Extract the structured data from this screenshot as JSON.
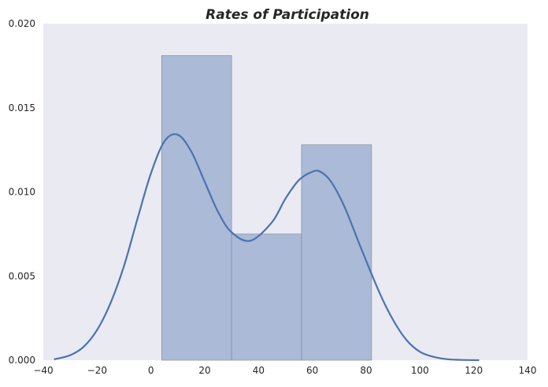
{
  "chart_data": {
    "type": "bar",
    "title": "Rates of Participation",
    "xlabel": "",
    "ylabel": "",
    "xlim": [
      -40,
      140
    ],
    "ylim": [
      0,
      0.02
    ],
    "grid": false,
    "background_color": "#EAEAF2",
    "bar_color": "#4C72B0",
    "line_color": "#4C72B0",
    "x_ticks": [
      -40,
      -20,
      0,
      20,
      40,
      60,
      80,
      100,
      120,
      140
    ],
    "x_tick_labels": [
      "−40",
      "−20",
      "0",
      "20",
      "40",
      "60",
      "80",
      "100",
      "120",
      "140"
    ],
    "y_ticks": [
      0,
      0.005,
      0.01,
      0.015,
      0.02
    ],
    "y_tick_labels": [
      "0.000",
      "0.005",
      "0.010",
      "0.015",
      "0.020"
    ],
    "histogram": {
      "bin_edges": [
        4,
        30,
        56,
        82
      ],
      "values": [
        0.0181,
        0.0075,
        0.0128
      ]
    },
    "kde": {
      "x": [
        -36,
        -30,
        -25,
        -20,
        -15,
        -10,
        -5,
        0,
        5,
        10,
        15,
        20,
        25,
        30,
        37,
        45,
        50,
        55,
        60,
        63,
        67,
        72,
        78,
        85,
        90,
        95,
        100,
        105,
        110,
        115,
        122
      ],
      "y": [
        5e-05,
        0.0003,
        0.0008,
        0.0018,
        0.0034,
        0.0056,
        0.0084,
        0.0111,
        0.013,
        0.0134,
        0.0124,
        0.0106,
        0.0088,
        0.0076,
        0.0071,
        0.0082,
        0.0096,
        0.0107,
        0.0112,
        0.0112,
        0.0106,
        0.0091,
        0.0067,
        0.004,
        0.0024,
        0.0012,
        0.0005,
        0.0002,
        6e-05,
        2e-05,
        0.0
      ]
    }
  }
}
